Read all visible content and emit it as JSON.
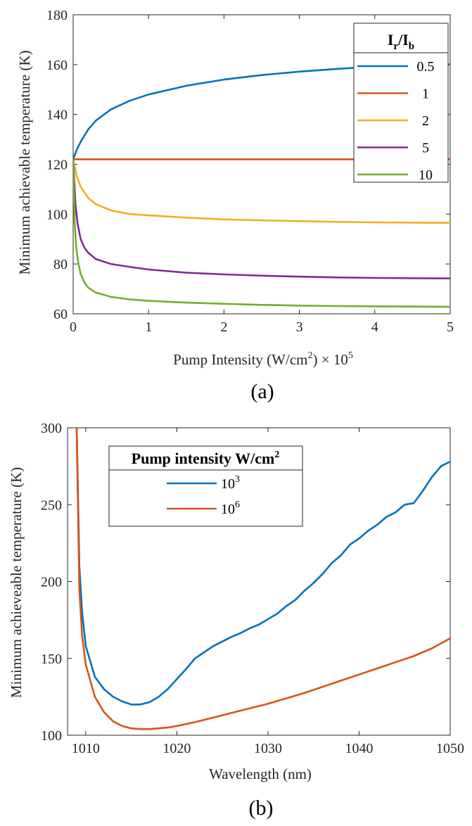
{
  "chart_data": [
    {
      "type": "line",
      "panel_label": "(a)",
      "xlabel": "Pump Intensity (W/cm",
      "xlabel_sup": "2",
      "xlabel_mid": ") × 10",
      "xlabel_sup2": "5",
      "ylabel": "Minimum achievable temperature (K)",
      "xlim": [
        0,
        5
      ],
      "ylim": [
        60,
        180
      ],
      "xticks": [
        0,
        1,
        2,
        3,
        4,
        5
      ],
      "yticks": [
        60,
        80,
        100,
        120,
        140,
        160,
        180
      ],
      "legend": {
        "title_base1": "I",
        "title_sub1": "r",
        "title_sep": "/I",
        "title_sub2": "b",
        "position": "top-right"
      },
      "series": [
        {
          "name": "0.5",
          "color": "#0072BD",
          "x": [
            0,
            0.05,
            0.1,
            0.2,
            0.3,
            0.5,
            0.75,
            1,
            1.5,
            2,
            2.5,
            3,
            3.5,
            4,
            4.5,
            5
          ],
          "y": [
            122,
            126,
            129,
            134,
            137.5,
            142,
            145.5,
            148,
            151.5,
            154,
            155.8,
            157.2,
            158.3,
            159.2,
            159.8,
            160.1
          ]
        },
        {
          "name": "1",
          "color": "#D95319",
          "x": [
            0,
            5
          ],
          "y": [
            122,
            122
          ]
        },
        {
          "name": "2",
          "color": "#EDB120",
          "x": [
            0,
            0.05,
            0.1,
            0.2,
            0.3,
            0.5,
            0.75,
            1,
            1.5,
            2,
            2.5,
            3,
            3.5,
            4,
            4.5,
            5
          ],
          "y": [
            122,
            115,
            111,
            106.5,
            104,
            101.5,
            100,
            99.5,
            98.6,
            97.9,
            97.5,
            97.2,
            96.9,
            96.7,
            96.6,
            96.5
          ]
        },
        {
          "name": "5",
          "color": "#7E2F8E",
          "x": [
            0,
            0.03,
            0.06,
            0.1,
            0.15,
            0.2,
            0.3,
            0.5,
            0.75,
            1,
            1.5,
            2,
            2.5,
            3,
            3.5,
            4,
            4.5,
            5
          ],
          "y": [
            122,
            104,
            96,
            90,
            86.5,
            84.5,
            82,
            80,
            78.8,
            77.8,
            76.5,
            75.8,
            75.3,
            74.9,
            74.6,
            74.4,
            74.3,
            74.2
          ]
        },
        {
          "name": "10",
          "color": "#77AC30",
          "x": [
            0,
            0.02,
            0.04,
            0.07,
            0.1,
            0.15,
            0.2,
            0.3,
            0.5,
            0.75,
            1,
            1.5,
            2,
            2.5,
            3,
            3.5,
            4,
            4.5,
            5
          ],
          "y": [
            122,
            97,
            87,
            80,
            76,
            72.5,
            70.5,
            68.5,
            66.8,
            65.8,
            65.2,
            64.5,
            64,
            63.6,
            63.3,
            63.1,
            63,
            62.9,
            62.8
          ]
        }
      ]
    },
    {
      "type": "line",
      "panel_label": "(b)",
      "xlabel": "Wavelength (nm)",
      "ylabel": "Minimum achieveable temperature (K)",
      "xlim": [
        1008,
        1050
      ],
      "ylim": [
        100,
        300
      ],
      "xticks": [
        1010,
        1020,
        1030,
        1040,
        1050
      ],
      "yticks": [
        100,
        150,
        200,
        250,
        300
      ],
      "legend": {
        "title": "Pump intensity W/cm",
        "title_sup": "2",
        "position": "top-left"
      },
      "series": [
        {
          "name_base": "10",
          "name_sup": "3",
          "color": "#0072BD",
          "x": [
            1009,
            1009.3,
            1009.6,
            1010,
            1011,
            1012,
            1013,
            1014,
            1015,
            1016,
            1017,
            1018,
            1019,
            1020,
            1021,
            1022,
            1023,
            1024,
            1025,
            1026,
            1027,
            1028,
            1029,
            1030,
            1031,
            1032,
            1033,
            1034,
            1035,
            1036,
            1037,
            1038,
            1039,
            1040,
            1041,
            1042,
            1043,
            1044,
            1045,
            1046,
            1047,
            1048,
            1049,
            1050
          ],
          "y": [
            300,
            210,
            180,
            158,
            138,
            130,
            125,
            122,
            120,
            120,
            121.5,
            125,
            130,
            136.5,
            143,
            150,
            154,
            158,
            161,
            164,
            166.5,
            169.5,
            172,
            175.5,
            179,
            184,
            188,
            194,
            199,
            205,
            212,
            217,
            224,
            228,
            233,
            237,
            242,
            245,
            250,
            251,
            259,
            268,
            275,
            278
          ]
        },
        {
          "name_base": "10",
          "name_sup": "6",
          "color": "#D95319",
          "x": [
            1009,
            1009.3,
            1009.6,
            1010,
            1011,
            1012,
            1013,
            1014,
            1015,
            1016,
            1017,
            1018,
            1019,
            1020,
            1022,
            1024,
            1026,
            1028,
            1030,
            1032,
            1034,
            1036,
            1038,
            1040,
            1042,
            1044,
            1046,
            1048,
            1050
          ],
          "y": [
            300,
            195,
            165,
            146,
            125,
            115,
            109,
            106,
            104.5,
            104,
            104,
            104.5,
            105,
            106,
            108.5,
            111.5,
            114.5,
            117.5,
            120.5,
            124,
            127.5,
            131.5,
            135.5,
            139.5,
            143.5,
            147.5,
            151.5,
            156.5,
            163
          ]
        }
      ]
    }
  ]
}
